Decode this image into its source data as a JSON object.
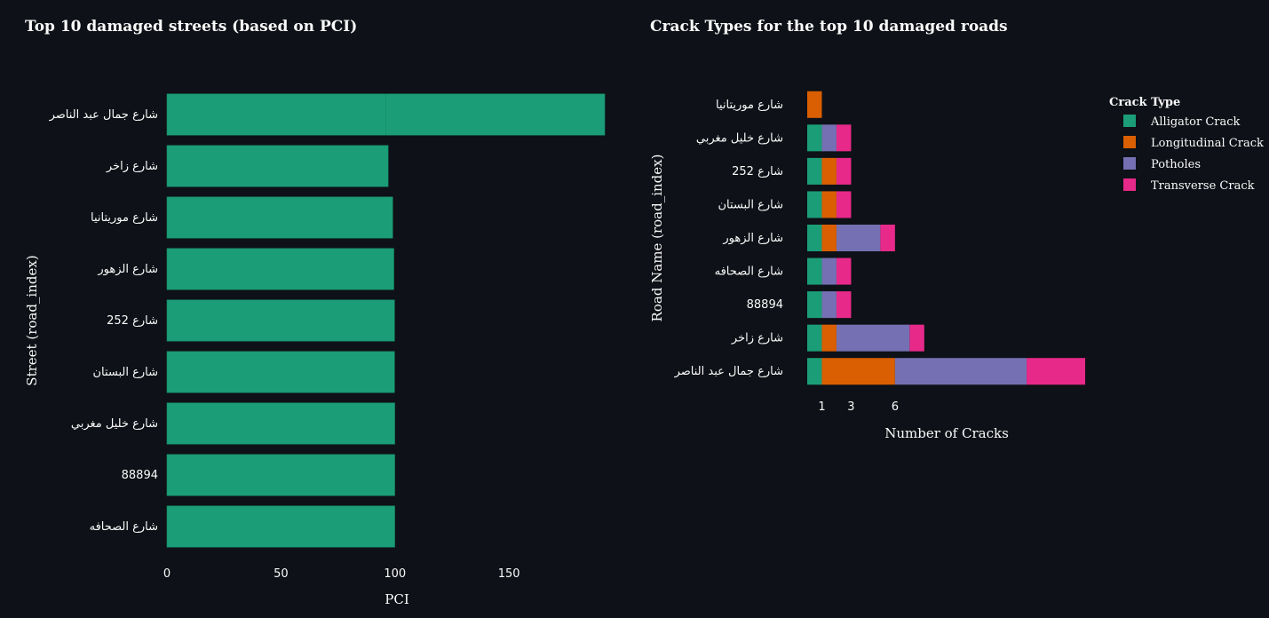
{
  "colors": {
    "background": "#0e1117",
    "text": "#fafafa",
    "alligator": "#1b9e77",
    "longitudinal": "#d95f02",
    "potholes": "#7570b3",
    "transverse": "#e7298a"
  },
  "chart_data": [
    {
      "type": "bar",
      "orientation": "horizontal",
      "title": "Top 10 damaged streets (based on PCI)",
      "xlabel": "PCI",
      "ylabel": "Street (road_index)",
      "categories": [
        "شارع جمال عبد الناصر",
        "شارع زاخر",
        "شارع موريتانيا",
        "شارع الزهور",
        "شارع 252",
        "شارع البستان",
        "شارع خليل مغربي",
        "88894",
        "شارع الصحافه"
      ],
      "segments": [
        [
          96,
          96
        ],
        [
          97
        ],
        [
          99
        ],
        [
          99.5
        ],
        [
          99.8
        ],
        [
          99.8
        ],
        [
          99.9
        ],
        [
          99.9
        ],
        [
          99.9
        ]
      ],
      "x_ticks": [
        "0",
        "50",
        "100",
        "150"
      ],
      "x_tick_values": [
        0,
        50,
        100,
        150
      ],
      "xlim": [
        0,
        192
      ],
      "grid": false,
      "series_color": "#1b9e77"
    },
    {
      "type": "bar",
      "orientation": "horizontal",
      "stacked": true,
      "title": "Crack Types for the top 10 damaged roads",
      "xlabel": "Number of Cracks",
      "ylabel": "Road Name (road_index)",
      "categories": [
        "شارع موريتانيا",
        "شارع خليل مغربي",
        "شارع 252",
        "شارع البستان",
        "شارع الزهور",
        "شارع الصحافه",
        "88894",
        "شارع زاخر",
        "شارع جمال عبد الناصر"
      ],
      "legend_title": "Crack Type",
      "legend_position": "top-right",
      "series": [
        {
          "name": "Alligator Crack",
          "color": "#1b9e77",
          "values": [
            0,
            1,
            1,
            1,
            1,
            1,
            1,
            1,
            1
          ]
        },
        {
          "name": "Longitudinal Crack",
          "color": "#d95f02",
          "values": [
            1,
            0,
            1,
            1,
            1,
            0,
            0,
            1,
            5
          ]
        },
        {
          "name": "Potholes",
          "color": "#7570b3",
          "values": [
            0,
            1,
            0,
            0,
            3,
            1,
            1,
            5,
            9
          ]
        },
        {
          "name": "Transverse Crack",
          "color": "#e7298a",
          "values": [
            0,
            1,
            1,
            1,
            1,
            1,
            1,
            1,
            4
          ]
        }
      ],
      "x_ticks": [
        "1",
        "3",
        "6"
      ],
      "x_tick_values": [
        1,
        3,
        6
      ],
      "xlim": [
        0,
        19
      ],
      "grid": false
    }
  ]
}
